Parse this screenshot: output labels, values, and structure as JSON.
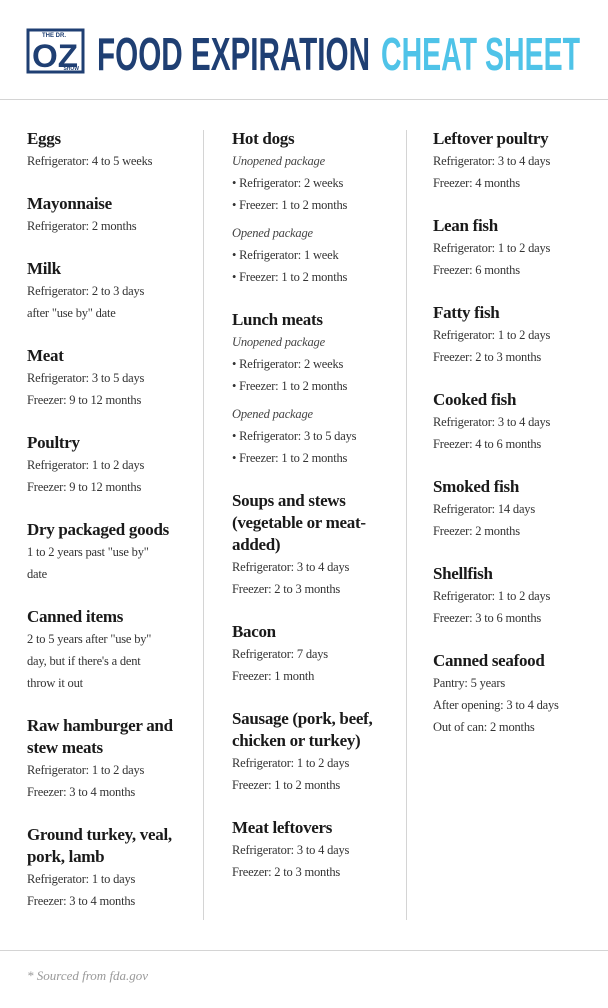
{
  "header": {
    "logo": {
      "top": "THE DR.",
      "main": "OZ",
      "bottom": "SHOW"
    },
    "title_main": "FOOD EXPIRATION",
    "title_accent": "CHEAT SHEET"
  },
  "columns": [
    {
      "items": [
        {
          "name": "Eggs",
          "lines": [
            "Refrigerator: 4 to 5 weeks"
          ]
        },
        {
          "name": "Mayonnaise",
          "lines": [
            "Refrigerator: 2 months"
          ]
        },
        {
          "name": "Milk",
          "lines": [
            "Refrigerator: 2 to 3 days",
            "after \"use by\" date"
          ]
        },
        {
          "name": "Meat",
          "lines": [
            "Refrigerator: 3 to 5 days",
            "Freezer: 9 to 12 months"
          ]
        },
        {
          "name": "Poultry",
          "lines": [
            "Refrigerator: 1 to 2 days",
            "Freezer: 9 to 12 months"
          ]
        },
        {
          "name": "Dry packaged goods",
          "lines": [
            "1 to 2 years past \"use by\"",
            "date"
          ]
        },
        {
          "name": "Canned items",
          "lines": [
            "2 to 5 years after \"use by\"",
            "day, but if there's a dent",
            "throw it out"
          ]
        },
        {
          "name": "Raw hamburger and stew meats",
          "lines": [
            "Refrigerator: 1 to 2 days",
            "Freezer: 3 to 4 months"
          ]
        },
        {
          "name": "Ground turkey, veal, pork, lamb",
          "lines": [
            "Refrigerator: 1 to days",
            "Freezer: 3 to 4 months"
          ]
        }
      ]
    },
    {
      "items": [
        {
          "name": "Hot dogs",
          "groups": [
            {
              "heading": "Unopened package",
              "lines": [
                "• Refrigerator: 2 weeks",
                "• Freezer: 1 to 2 months"
              ]
            },
            {
              "heading": "Opened package",
              "lines": [
                "• Refrigerator: 1 week",
                "• Freezer: 1 to 2 months"
              ]
            }
          ]
        },
        {
          "name": "Lunch meats",
          "groups": [
            {
              "heading": "Unopened package",
              "lines": [
                "• Refrigerator: 2 weeks",
                "• Freezer: 1 to 2 months"
              ]
            },
            {
              "heading": "Opened package",
              "lines": [
                "• Refrigerator: 3 to 5 days",
                "• Freezer: 1 to 2 months"
              ]
            }
          ]
        },
        {
          "name": "Soups and stews (vegetable or meat-added)",
          "lines": [
            "Refrigerator: 3 to 4 days",
            "Freezer: 2 to 3 months"
          ]
        },
        {
          "name": "Bacon",
          "lines": [
            "Refrigerator: 7 days",
            "Freezer: 1 month"
          ]
        },
        {
          "name": "Sausage (pork, beef, chicken or turkey)",
          "lines": [
            "Refrigerator: 1 to 2 days",
            "Freezer: 1 to 2 months"
          ]
        },
        {
          "name": "Meat leftovers",
          "lines": [
            "Refrigerator: 3 to 4 days",
            "Freezer: 2 to 3 months"
          ]
        }
      ]
    },
    {
      "items": [
        {
          "name": "Leftover poultry",
          "lines": [
            "Refrigerator: 3 to 4 days",
            "Freezer: 4 months"
          ]
        },
        {
          "name": "Lean fish",
          "lines": [
            "Refrigerator: 1 to 2 days",
            "Freezer: 6 months"
          ]
        },
        {
          "name": "Fatty fish",
          "lines": [
            "Refrigerator: 1 to 2 days",
            "Freezer: 2 to 3 months"
          ]
        },
        {
          "name": "Cooked fish",
          "lines": [
            "Refrigerator: 3 to 4 days",
            "Freezer: 4 to 6 months"
          ]
        },
        {
          "name": "Smoked fish",
          "lines": [
            "Refrigerator: 14 days",
            "Freezer: 2 months"
          ]
        },
        {
          "name": "Shellfish",
          "lines": [
            "Refrigerator: 1 to 2 days",
            "Freezer: 3 to 6 months"
          ]
        },
        {
          "name": "Canned seafood",
          "lines": [
            "Pantry: 5 years",
            "After opening: 3 to 4 days",
            "Out of can: 2 months"
          ]
        }
      ]
    }
  ],
  "footer": {
    "note": "* Sourced from fda.gov"
  }
}
